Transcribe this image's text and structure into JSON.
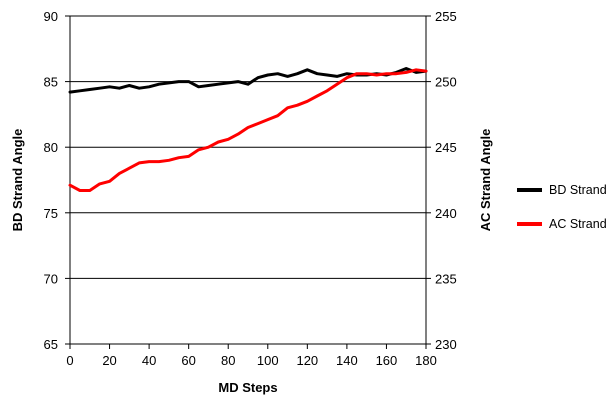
{
  "chart_data": {
    "type": "line",
    "title": "",
    "xlabel": "MD Steps",
    "ylabel_left": "BD Strand Angle",
    "ylabel_right": "AC Strand Angle",
    "xlim": [
      0,
      180
    ],
    "ylim_left": [
      65,
      90
    ],
    "ylim_right": [
      230,
      255
    ],
    "x_ticks": [
      "0",
      "20",
      "40",
      "60",
      "80",
      "100",
      "120",
      "140",
      "160",
      "180"
    ],
    "y_left_ticks": [
      "65",
      "70",
      "75",
      "80",
      "85",
      "90"
    ],
    "y_right_ticks": [
      "230",
      "235",
      "240",
      "245",
      "250",
      "255"
    ],
    "grid": "horizontal",
    "legend_position": "right",
    "series": [
      {
        "name": "BD Strand",
        "color": "#000000",
        "axis": "left",
        "x": [
          0,
          5,
          10,
          15,
          20,
          25,
          30,
          35,
          40,
          45,
          50,
          55,
          60,
          65,
          70,
          75,
          80,
          85,
          90,
          95,
          100,
          105,
          110,
          115,
          120,
          125,
          130,
          135,
          140,
          145,
          150,
          155,
          160,
          165,
          170,
          175,
          180
        ],
        "values": [
          84.2,
          84.3,
          84.4,
          84.5,
          84.6,
          84.5,
          84.7,
          84.5,
          84.6,
          84.8,
          84.9,
          85.0,
          85.0,
          84.6,
          84.7,
          84.8,
          84.9,
          85.0,
          84.8,
          85.3,
          85.5,
          85.6,
          85.4,
          85.6,
          85.9,
          85.6,
          85.5,
          85.4,
          85.6,
          85.5,
          85.5,
          85.6,
          85.5,
          85.7,
          86.0,
          85.7,
          85.8
        ]
      },
      {
        "name": "AC Strand",
        "color": "#ff0000",
        "axis": "right",
        "x": [
          0,
          5,
          10,
          15,
          20,
          25,
          30,
          35,
          40,
          45,
          50,
          55,
          60,
          65,
          70,
          75,
          80,
          85,
          90,
          95,
          100,
          105,
          110,
          115,
          120,
          125,
          130,
          135,
          140,
          145,
          150,
          155,
          160,
          165,
          170,
          175,
          180
        ],
        "values": [
          242.1,
          241.7,
          241.7,
          242.2,
          242.4,
          243.0,
          243.4,
          243.8,
          243.9,
          243.9,
          244.0,
          244.2,
          244.3,
          244.8,
          245.0,
          245.4,
          245.6,
          246.0,
          246.5,
          246.8,
          247.1,
          247.4,
          248.0,
          248.2,
          248.5,
          248.9,
          249.3,
          249.8,
          250.3,
          250.6,
          250.6,
          250.5,
          250.6,
          250.6,
          250.7,
          250.9,
          250.8
        ]
      }
    ]
  }
}
